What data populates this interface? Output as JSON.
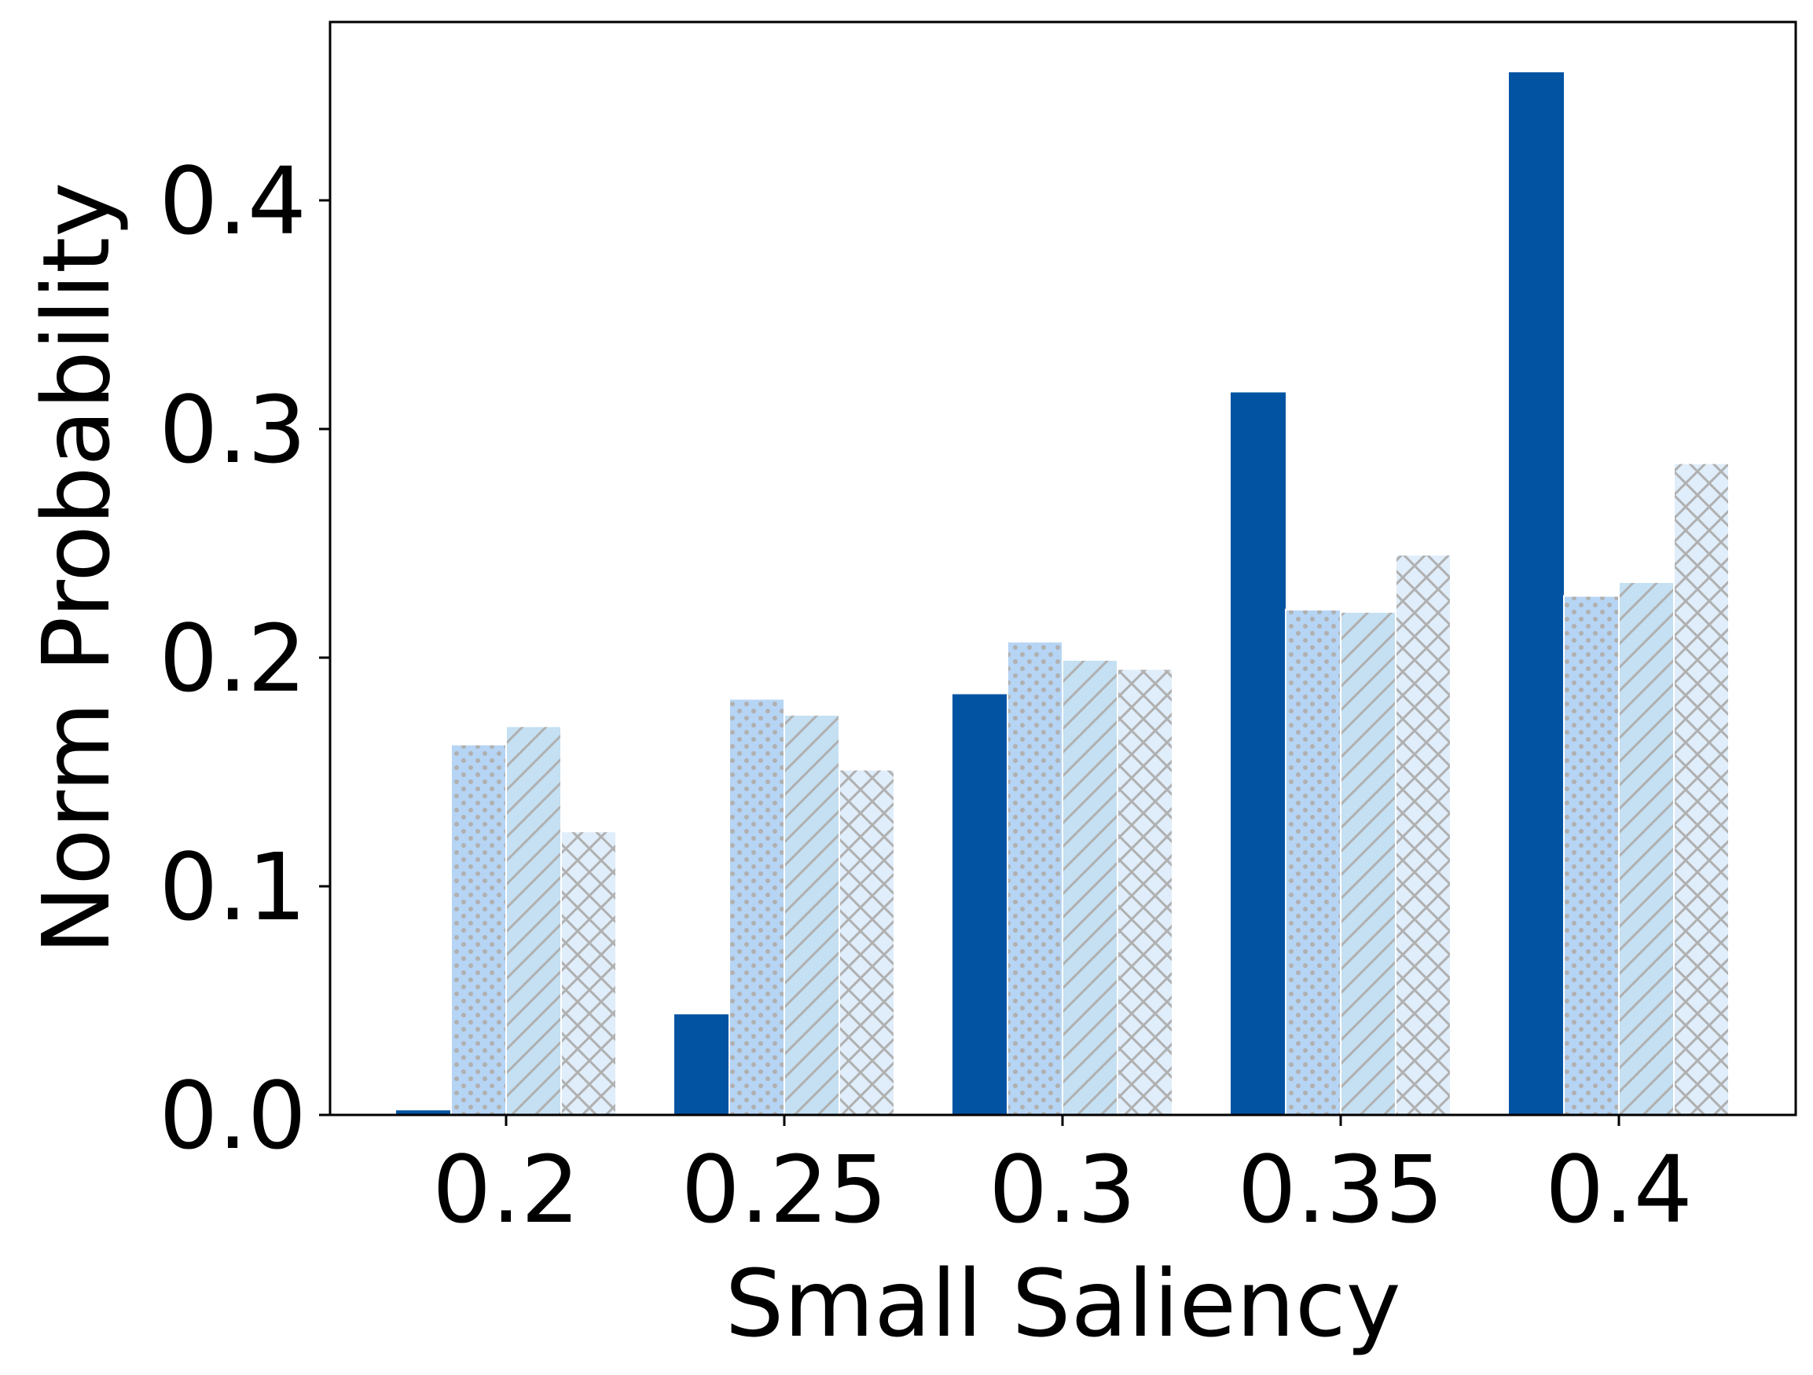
{
  "chart_data": {
    "type": "bar",
    "title": "",
    "xlabel": "Small Saliency",
    "ylabel": "Norm Probability",
    "categories": [
      "0.2",
      "0.25",
      "0.3",
      "0.35",
      "0.4"
    ],
    "ylim": [
      0,
      0.478
    ],
    "yticks": [
      "0.0",
      "0.1",
      "0.2",
      "0.3",
      "0.4"
    ],
    "ytick_values": [
      0,
      0.1,
      0.2,
      0.3,
      0.4
    ],
    "grid": false,
    "legend": "none",
    "series": [
      {
        "values": [
          0.002,
          0.044,
          0.184,
          0.316,
          0.456
        ],
        "color": "#0254a3",
        "pattern": "solid"
      },
      {
        "values": [
          0.162,
          0.182,
          0.207,
          0.221,
          0.227
        ],
        "color": "#b6d4f4",
        "pattern": "dots"
      },
      {
        "values": [
          0.17,
          0.175,
          0.199,
          0.22,
          0.233
        ],
        "color": "#c4e0f2",
        "pattern": "diagonal"
      },
      {
        "values": [
          0.124,
          0.151,
          0.195,
          0.245,
          0.285
        ],
        "color": "#e0edfa",
        "pattern": "crosshatch"
      }
    ],
    "pattern_color": "#b0b0b0"
  }
}
